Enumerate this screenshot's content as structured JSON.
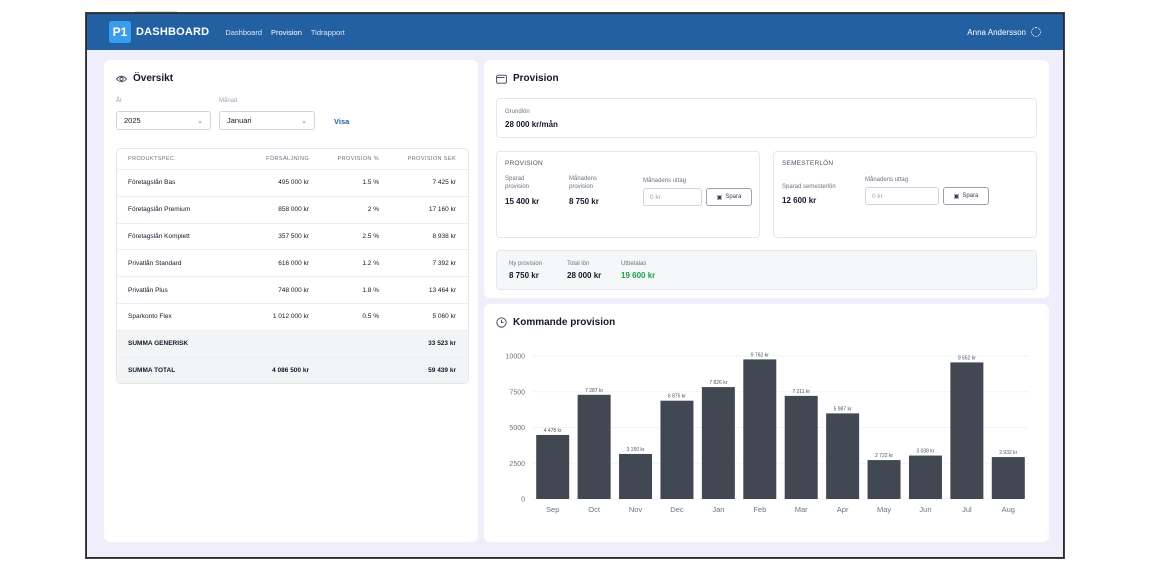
{
  "header": {
    "logo": "P1",
    "brand": "DASHBOARD",
    "nav": [
      "Dashboard",
      "Provision",
      "Tidrapport"
    ],
    "user": "Anna Andersson"
  },
  "overview": {
    "title": "Översikt",
    "year_label": "År",
    "year_value": "2025",
    "month_label": "Månad",
    "month_value": "Januari",
    "show_label": "Visa",
    "columns": [
      "PRODUKTSPEC.",
      "FÖRSÄLJNING",
      "PROVISION %",
      "PROVISION SEK"
    ],
    "rows": [
      [
        "Företagslån Bas",
        "495 000 kr",
        "1.5 %",
        "7 425 kr"
      ],
      [
        "Företagslån Premium",
        "858 000 kr",
        "2 %",
        "17 160 kr"
      ],
      [
        "Företagslån Komplett",
        "357 500 kr",
        "2.5 %",
        "8 938 kr"
      ],
      [
        "Privatlån Standard",
        "616 000 kr",
        "1.2 %",
        "7 392 kr"
      ],
      [
        "Privatlån Plus",
        "748 000 kr",
        "1.8 %",
        "13 464 kr"
      ],
      [
        "Sparkonto Flex",
        "1 012 000 kr",
        "0.5 %",
        "5 060 kr"
      ]
    ],
    "sum_generic": [
      "SUMMA GENERISK",
      "",
      "",
      "33 523 kr"
    ],
    "sum_total": [
      "SUMMA TOTAL",
      "4 086 500 kr",
      "",
      "59 439 kr"
    ]
  },
  "provision": {
    "title": "Provision",
    "base_salary_label": "Grundlön",
    "base_salary_value": "28 000 kr/mån",
    "prov_section": "PROVISION",
    "saved_prov_label": "Sparad provision",
    "saved_prov_value": "15 400 kr",
    "monthly_prov_label": "Månadens provision",
    "monthly_prov_value": "8 750 kr",
    "withdraw_label": "Månadens uttag",
    "withdraw_placeholder": "0 kr",
    "save_label": "Spara",
    "vac_section": "SEMESTERLÖN",
    "saved_vac_label": "Sparad semesterlön",
    "saved_vac_value": "12 600 kr",
    "vac_withdraw_label": "Månadens uttag",
    "vac_withdraw_placeholder": "0 kr",
    "vac_save_label": "Spara",
    "new_prov_label": "Ny provision",
    "new_prov_value": "8 750 kr",
    "total_salary_label": "Total lön",
    "total_salary_value": "28 000 kr",
    "payout_label": "Utbetalas",
    "payout_value": "19 600 kr"
  },
  "upcoming": {
    "title": "Kommande provision"
  },
  "colors": {
    "header": "#2360a1",
    "bar": "#424852",
    "accent": "#16a34a"
  },
  "chart_data": {
    "type": "bar",
    "categories": [
      "Sep",
      "Oct",
      "Nov",
      "Dec",
      "Jan",
      "Feb",
      "Mar",
      "Apr",
      "May",
      "Jun",
      "Jul",
      "Aug"
    ],
    "values": [
      4478,
      7287,
      3150,
      6875,
      7826,
      9762,
      7211,
      5987,
      2722,
      3038,
      9552,
      2932
    ],
    "labels": [
      "4 478 kr",
      "7 287 kr",
      "3 150 kr",
      "6 875 kr",
      "7 826 kr",
      "9 762 kr",
      "7 211 kr",
      "5 987 kr",
      "2 722 kr",
      "3 038 kr",
      "9 552 kr",
      "2 932 kr"
    ],
    "yticks": [
      0,
      2500,
      5000,
      7500,
      10000
    ],
    "ylim": [
      0,
      10000
    ],
    "grid": true
  }
}
